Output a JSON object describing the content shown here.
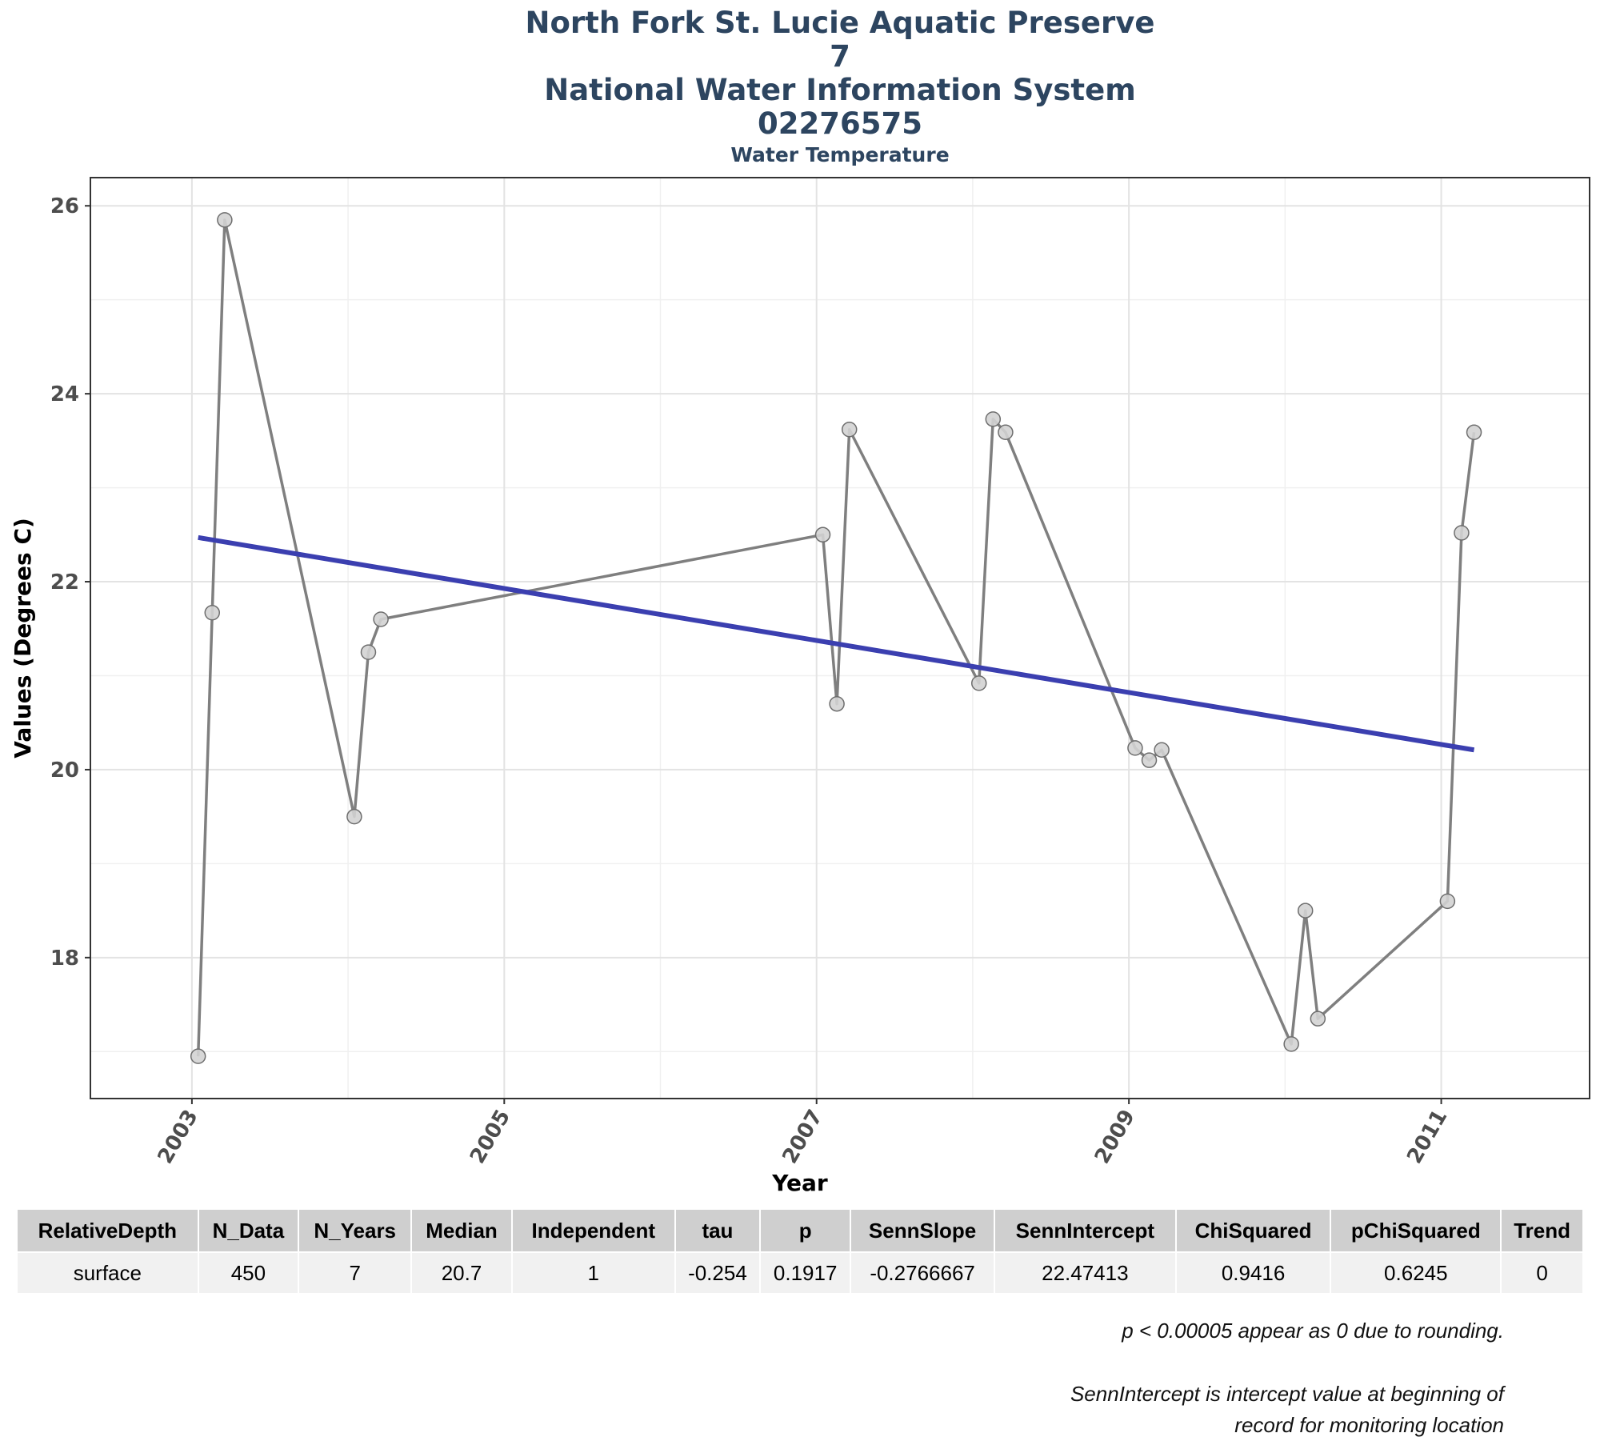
{
  "titles": {
    "line1": "North Fork St. Lucie Aquatic Preserve",
    "line2": "7",
    "line3": "National Water Information System",
    "line4": "02276575",
    "subtitle": "Water Temperature"
  },
  "chart_data": {
    "type": "line",
    "title": "North Fork St. Lucie Aquatic Preserve 7 National Water Information System 02276575",
    "subtitle": "Water Temperature",
    "xlabel": "Year",
    "ylabel": "Values (Degrees C)",
    "xlim": [
      2002.35,
      2011.95
    ],
    "ylim": [
      16.5,
      26.3
    ],
    "x_ticks": [
      2003,
      2005,
      2007,
      2009,
      2011
    ],
    "y_ticks": [
      18,
      20,
      22,
      24,
      26
    ],
    "grid": true,
    "series": [
      {
        "kind": "observations",
        "x": [
          2003.04,
          2003.13,
          2003.21,
          2004.04,
          2004.13,
          2004.21,
          2007.04,
          2007.13,
          2007.21,
          2008.04,
          2008.13,
          2008.21,
          2009.04,
          2009.13,
          2009.21,
          2010.04,
          2010.13,
          2010.21,
          2011.04,
          2011.13,
          2011.21
        ],
        "y": [
          16.95,
          21.67,
          25.85,
          19.5,
          21.25,
          21.6,
          22.5,
          20.7,
          23.62,
          20.92,
          23.73,
          23.59,
          20.23,
          20.1,
          20.21,
          17.08,
          18.5,
          17.35,
          18.6,
          22.52,
          23.59
        ],
        "color": "#7f7f7f"
      },
      {
        "kind": "trend",
        "x": [
          2003.04,
          2011.21
        ],
        "y": [
          22.47,
          20.21
        ],
        "color": "#3b3fb0"
      }
    ]
  },
  "stats_table": {
    "headers": [
      "RelativeDepth",
      "N_Data",
      "N_Years",
      "Median",
      "Independent",
      "tau",
      "p",
      "SennSlope",
      "SennIntercept",
      "ChiSquared",
      "pChiSquared",
      "Trend"
    ],
    "row": [
      "surface",
      "450",
      "7",
      "20.7",
      "1",
      "-0.254",
      "0.1917",
      "-0.2766667",
      "22.47413",
      "0.9416",
      "0.6245",
      "0"
    ]
  },
  "notes": {
    "rounding": "p < 0.00005 appear as 0 due to rounding.",
    "intercept_line1": "SennIntercept is intercept value at beginning of",
    "intercept_line2": "record for monitoring location"
  }
}
